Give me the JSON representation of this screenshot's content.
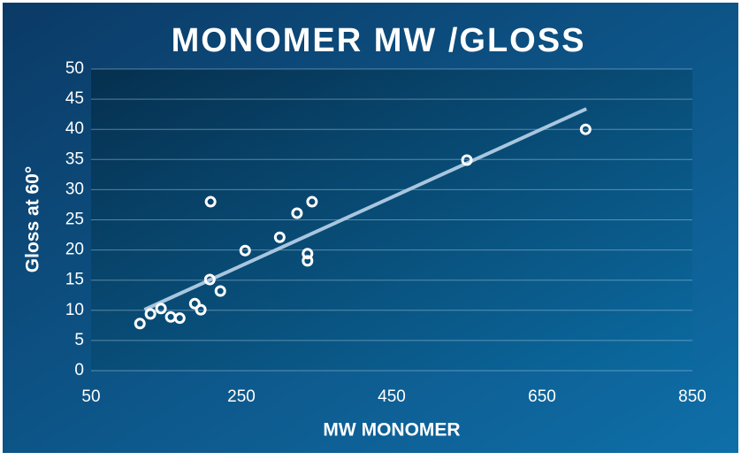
{
  "chart_data": {
    "type": "scatter",
    "title": "MONOMER MW /GLOSS",
    "x_label": "MW MONOMER",
    "y_label": "Gloss at 60°",
    "x": [
      115,
      129,
      143,
      156,
      168,
      188,
      196,
      208,
      209,
      222,
      255,
      301,
      324,
      338,
      338,
      344,
      550,
      708
    ],
    "values": [
      7.8,
      9.4,
      10.3,
      8.9,
      8.7,
      11.1,
      10.1,
      15.1,
      28,
      13.2,
      19.9,
      22.1,
      26.1,
      19.4,
      18.2,
      28,
      34.9,
      40
    ],
    "color": "#ffffff",
    "trendline": {
      "x": [
        121,
        709
      ],
      "y": [
        10.1,
        43.4
      ],
      "color": "#a9c6df"
    },
    "xlim": [
      50,
      850
    ],
    "ylim": [
      0,
      50
    ],
    "xticks": [
      50,
      250,
      450,
      650,
      850
    ],
    "yticks": [
      0,
      5,
      10,
      15,
      20,
      25,
      30,
      35,
      40,
      45,
      50
    ],
    "grid": true
  }
}
